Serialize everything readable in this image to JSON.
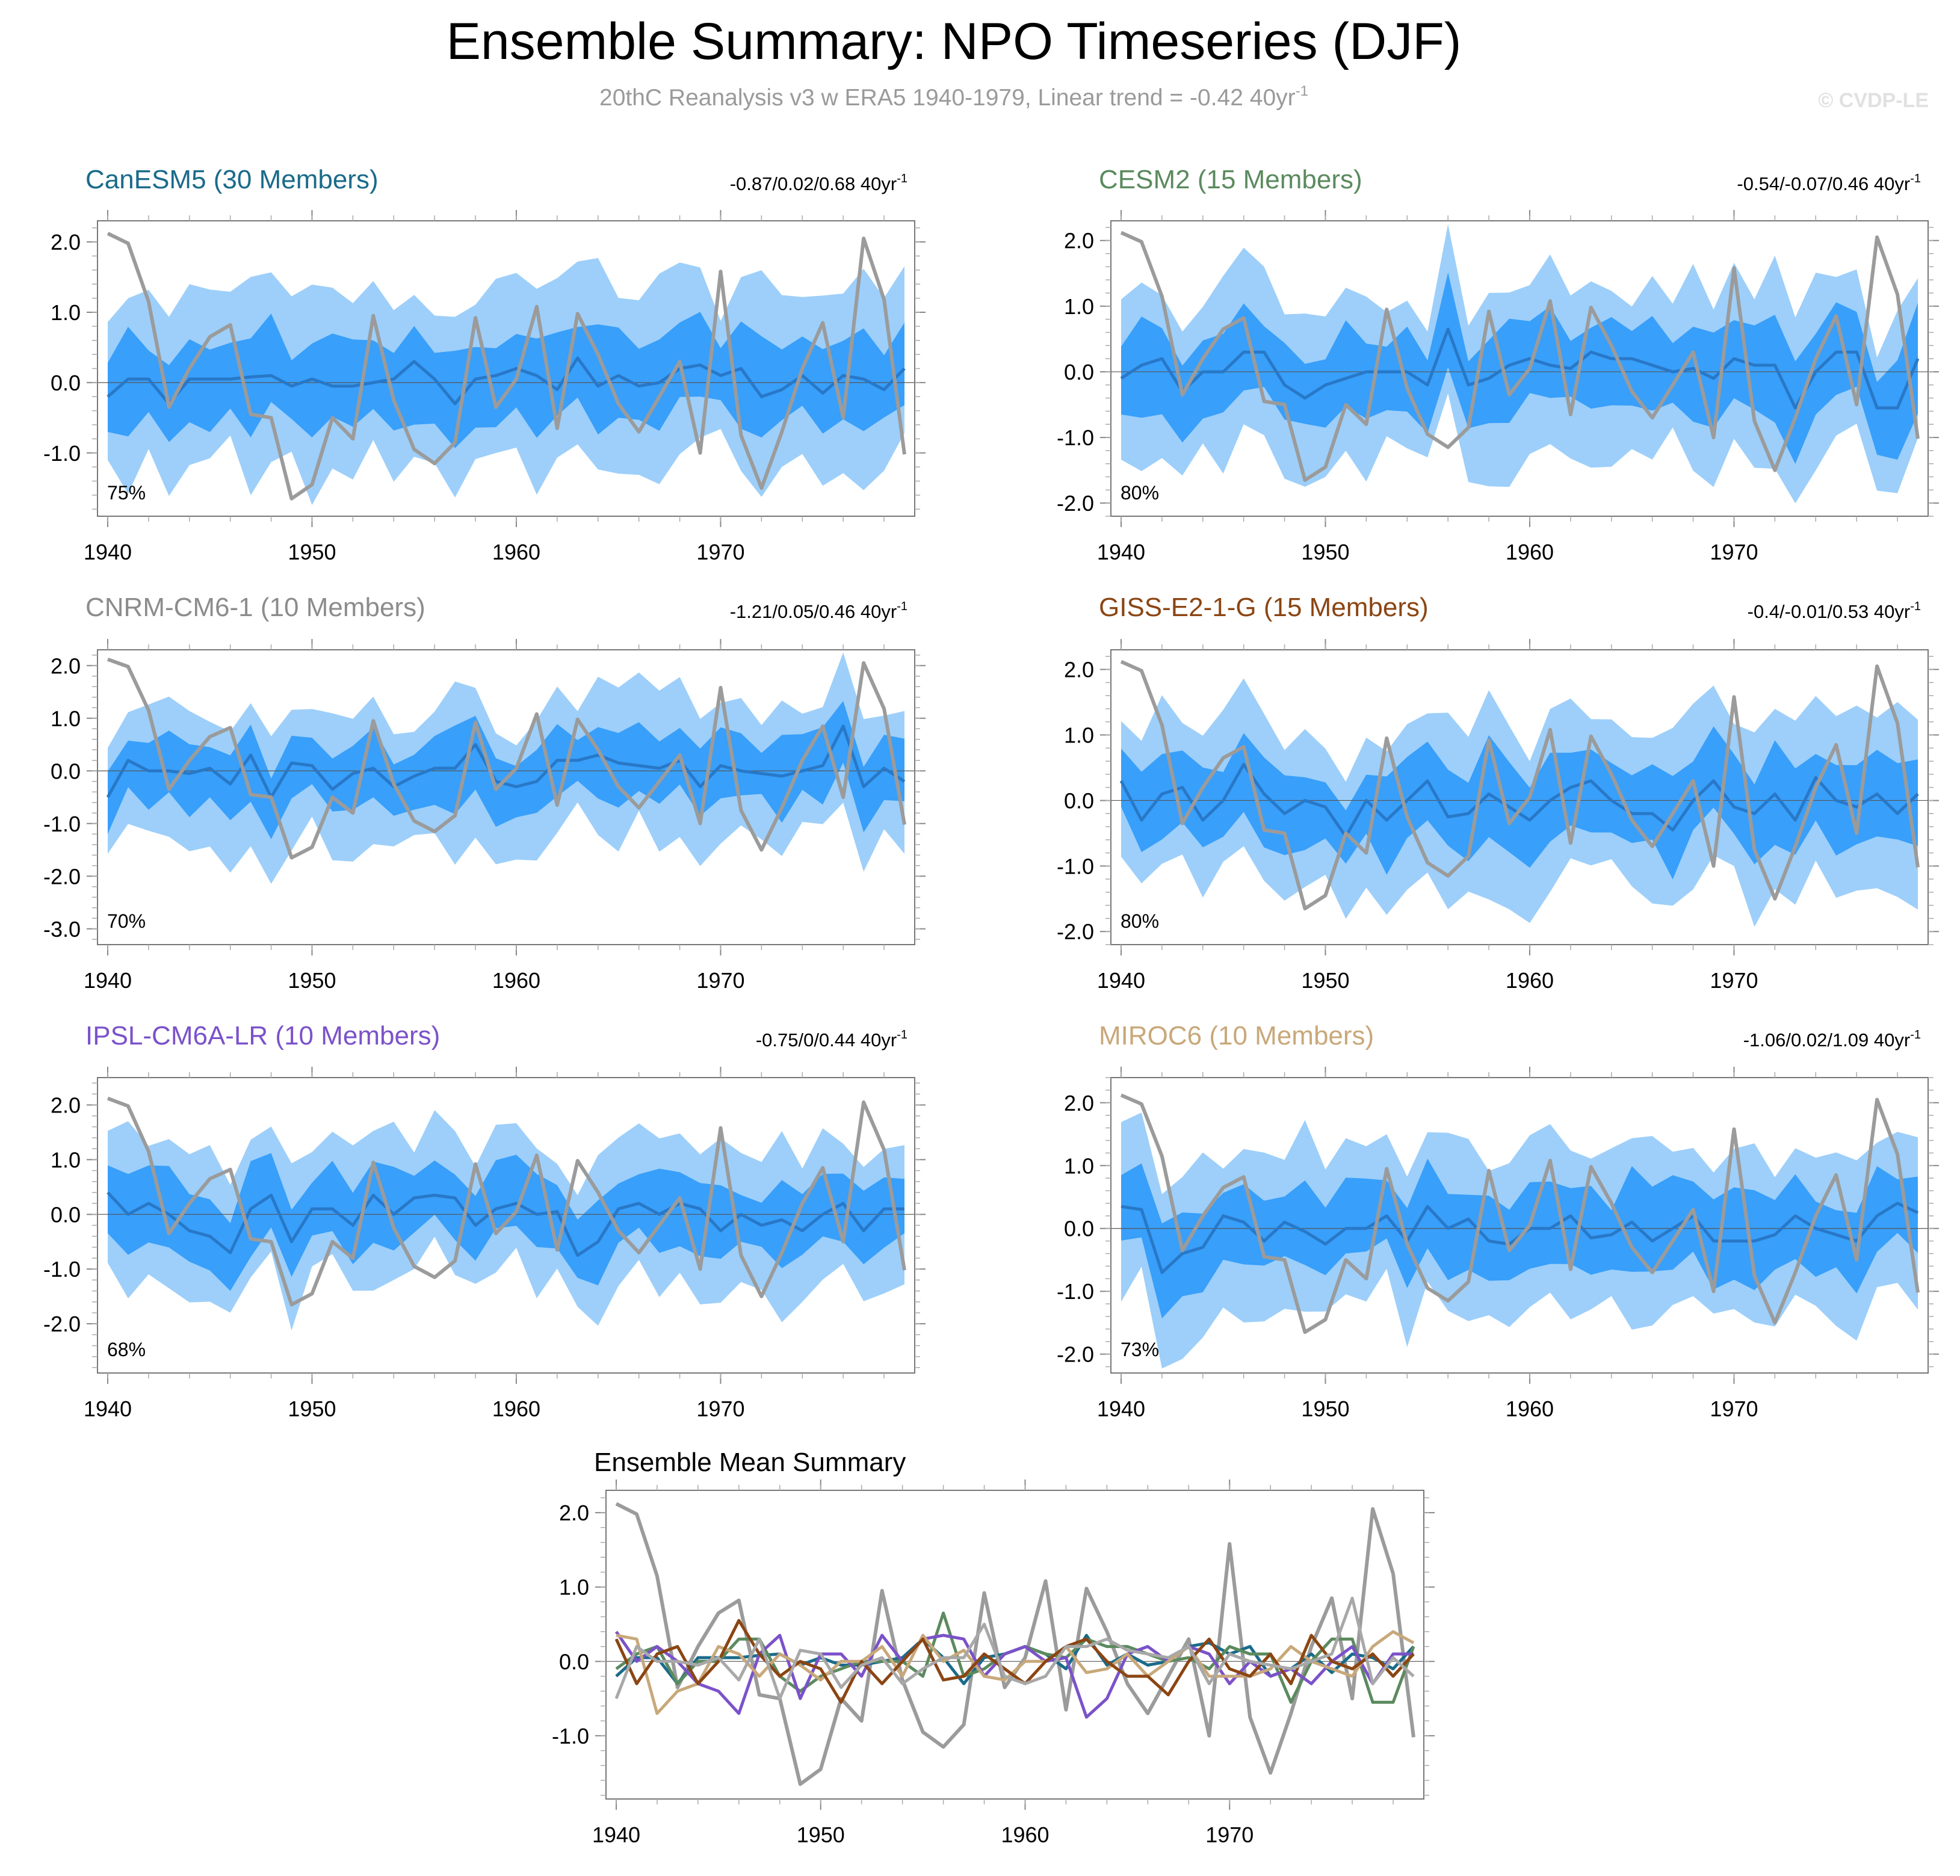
{
  "header": {
    "title": "Ensemble Summary: NPO Timeseries (DJF)",
    "subtitle": "20thC Reanalysis v3 w ERA5 1940-1979, Linear trend = -0.42 40yr",
    "subtitle_sup": "-1",
    "watermark": "© CVDP-LE"
  },
  "colors": {
    "outer_band": "#9dcffa",
    "inner_band": "#389ffa",
    "ens_mean_line": "#2878c8",
    "obs_line": "#9b9b9b"
  },
  "chart_data": [
    {
      "type": "area",
      "name": "CanESM5",
      "title": "CanESM5 (30 Members)",
      "title_color": "#1a6b8a",
      "trend_text": "-0.87/0.02/0.68 40yr",
      "trend_sup": "-1",
      "percent": "75%",
      "yticks": [
        2,
        1,
        0,
        -1
      ],
      "ytick_labels": [
        "2.0",
        "1.0",
        "0.0",
        "-1.0"
      ],
      "ylim": [
        -1.9,
        2.3
      ],
      "xlim": [
        1939.5,
        1979.5
      ],
      "xticks": [
        1940,
        1950,
        1960,
        1970
      ],
      "xtick_labels": [
        "1940",
        "1950",
        "1960",
        "1970"
      ],
      "seed": 11,
      "ens_mean": [
        -0.2,
        0.05,
        0.05,
        -0.3,
        0.05,
        0.05,
        0.05,
        0.08,
        0.1,
        -0.05,
        0.05,
        -0.05,
        -0.05,
        0.0,
        0.05,
        0.3,
        0.05,
        -0.3,
        0.05,
        0.1,
        0.2,
        0.1,
        -0.1,
        0.35,
        -0.05,
        0.1,
        -0.05,
        0.0,
        0.2,
        0.25,
        0.1,
        0.2,
        -0.2,
        -0.1,
        0.1,
        -0.15,
        0.1,
        0.05,
        -0.1,
        0.2
      ]
    },
    {
      "type": "area",
      "name": "CESM2",
      "title": "CESM2 (15 Members)",
      "title_color": "#5b8a5e",
      "trend_text": "-0.54/-0.07/0.46 40yr",
      "trend_sup": "-1",
      "percent": "80%",
      "yticks": [
        2,
        1,
        0,
        -1,
        -2
      ],
      "ytick_labels": [
        "2.0",
        "1.0",
        "0.0",
        "-1.0",
        "-2.0"
      ],
      "ylim": [
        -2.2,
        2.3
      ],
      "xlim": [
        1939.5,
        1979.5
      ],
      "xticks": [
        1940,
        1950,
        1960,
        1970
      ],
      "xtick_labels": [
        "1940",
        "1950",
        "1960",
        "1970"
      ],
      "seed": 23,
      "ens_mean": [
        -0.1,
        0.1,
        0.2,
        -0.3,
        0.0,
        0.0,
        0.3,
        0.3,
        -0.2,
        -0.4,
        -0.2,
        -0.1,
        0.0,
        0.0,
        0.0,
        -0.2,
        0.65,
        -0.2,
        -0.1,
        0.1,
        0.2,
        0.1,
        0.05,
        0.3,
        0.2,
        0.2,
        0.1,
        0.0,
        0.05,
        -0.1,
        0.2,
        0.1,
        0.1,
        -0.55,
        0.0,
        0.3,
        0.3,
        -0.55,
        -0.55,
        0.2
      ]
    },
    {
      "type": "area",
      "name": "CNRM-CM6-1",
      "title": "CNRM-CM6-1 (10 Members)",
      "title_color": "#8c8c8c",
      "trend_text": "-1.21/0.05/0.46 40yr",
      "trend_sup": "-1",
      "percent": "70%",
      "yticks": [
        2,
        1,
        0,
        -1,
        -2,
        -3
      ],
      "ytick_labels": [
        "2.0",
        "1.0",
        "0.0",
        "-1.0",
        "-2.0",
        "-3.0"
      ],
      "ylim": [
        -3.3,
        2.3
      ],
      "xlim": [
        1939.5,
        1979.5
      ],
      "xticks": [
        1940,
        1950,
        1960,
        1970
      ],
      "xtick_labels": [
        "1940",
        "1950",
        "1960",
        "1970"
      ],
      "seed": 37,
      "ens_mean": [
        -0.5,
        0.2,
        0.0,
        0.0,
        -0.05,
        0.05,
        -0.25,
        0.3,
        -0.5,
        0.15,
        0.1,
        -0.35,
        -0.05,
        0.05,
        -0.3,
        -0.1,
        0.05,
        0.05,
        0.5,
        -0.2,
        -0.3,
        -0.2,
        0.2,
        0.2,
        0.3,
        0.15,
        0.1,
        0.05,
        0.2,
        -0.3,
        0.1,
        0.0,
        -0.05,
        -0.1,
        0.0,
        0.1,
        0.85,
        -0.3,
        0.05,
        -0.2
      ]
    },
    {
      "type": "area",
      "name": "GISS-E2-1-G",
      "title": "GISS-E2-1-G (15 Members)",
      "title_color": "#8b4513",
      "trend_text": "-0.4/-0.01/0.53 40yr",
      "trend_sup": "-1",
      "percent": "80%",
      "yticks": [
        2,
        1,
        0,
        -1,
        -2
      ],
      "ytick_labels": [
        "2.0",
        "1.0",
        "0.0",
        "-1.0",
        "-2.0"
      ],
      "ylim": [
        -2.2,
        2.3
      ],
      "xlim": [
        1939.5,
        1979.5
      ],
      "xticks": [
        1940,
        1950,
        1960,
        1970
      ],
      "xtick_labels": [
        "1940",
        "1950",
        "1960",
        "1970"
      ],
      "seed": 53,
      "ens_mean": [
        0.3,
        -0.3,
        0.1,
        0.2,
        -0.3,
        0.0,
        0.55,
        0.1,
        -0.2,
        0.0,
        -0.1,
        -0.55,
        0.0,
        -0.3,
        0.0,
        0.3,
        -0.25,
        -0.2,
        0.1,
        -0.1,
        -0.3,
        0.0,
        0.2,
        0.3,
        0.0,
        -0.2,
        -0.2,
        -0.45,
        0.0,
        0.3,
        -0.1,
        -0.2,
        0.1,
        -0.3,
        0.35,
        0.0,
        -0.1,
        0.1,
        -0.2,
        0.1
      ]
    },
    {
      "type": "area",
      "name": "IPSL-CM6A-LR",
      "title": "IPSL-CM6A-LR (10 Members)",
      "title_color": "#7b52c9",
      "trend_text": "-0.75/0/0.44 40yr",
      "trend_sup": "-1",
      "percent": "68%",
      "yticks": [
        2,
        1,
        0,
        -1,
        -2
      ],
      "ytick_labels": [
        "2.0",
        "1.0",
        "0.0",
        "-1.0",
        "-2.0"
      ],
      "ylim": [
        -2.9,
        2.5
      ],
      "xlim": [
        1939.5,
        1979.5
      ],
      "xticks": [
        1940,
        1950,
        1960,
        1970
      ],
      "xtick_labels": [
        "1940",
        "1950",
        "1960",
        "1970"
      ],
      "seed": 71,
      "ens_mean": [
        0.4,
        0.0,
        0.2,
        0.0,
        -0.3,
        -0.4,
        -0.7,
        0.1,
        0.35,
        -0.5,
        0.1,
        0.1,
        -0.2,
        0.35,
        0.0,
        0.3,
        0.35,
        0.3,
        -0.2,
        0.1,
        0.2,
        0.0,
        0.05,
        -0.75,
        -0.5,
        0.1,
        0.2,
        0.0,
        0.2,
        0.1,
        -0.3,
        0.0,
        -0.2,
        -0.1,
        -0.3,
        0.0,
        0.2,
        -0.3,
        0.1,
        0.1
      ]
    },
    {
      "type": "area",
      "name": "MIROC6",
      "title": "MIROC6 (10 Members)",
      "title_color": "#c8a87a",
      "trend_text": "-1.06/0.02/1.09 40yr",
      "trend_sup": "-1",
      "percent": "73%",
      "yticks": [
        2,
        1,
        0,
        -1,
        -2
      ],
      "ytick_labels": [
        "2.0",
        "1.0",
        "0.0",
        "-1.0",
        "-2.0"
      ],
      "ylim": [
        -2.3,
        2.4
      ],
      "xlim": [
        1939.5,
        1979.5
      ],
      "xticks": [
        1940,
        1950,
        1960,
        1970
      ],
      "xtick_labels": [
        "1940",
        "1950",
        "1960",
        "1970"
      ],
      "seed": 89,
      "ens_mean": [
        0.35,
        0.3,
        -0.7,
        -0.4,
        -0.3,
        0.2,
        0.1,
        -0.2,
        0.1,
        -0.05,
        -0.25,
        0.0,
        0.0,
        0.2,
        -0.2,
        0.35,
        0.0,
        0.15,
        -0.2,
        -0.25,
        0.0,
        0.0,
        0.2,
        -0.15,
        -0.1,
        0.1,
        -0.2,
        0.0,
        0.2,
        -0.2,
        -0.2,
        -0.2,
        -0.1,
        0.2,
        0.0,
        -0.1,
        -0.2,
        0.2,
        0.4,
        0.25
      ]
    },
    {
      "type": "line",
      "name": "Ensemble Mean Summary",
      "title": "Ensemble Mean Summary",
      "title_color": "#000000",
      "yticks": [
        2,
        1,
        0,
        -1
      ],
      "ytick_labels": [
        "2.0",
        "1.0",
        "0.0",
        "-1.0"
      ],
      "ylim": [
        -1.85,
        2.3
      ],
      "xlim": [
        1939.5,
        1979.5
      ],
      "xticks": [
        1940,
        1950,
        1960,
        1970
      ],
      "xtick_labels": [
        "1940",
        "1950",
        "1960",
        "1970"
      ],
      "series_refs": [
        {
          "name": "CanESM5",
          "color": "#1a6b8a"
        },
        {
          "name": "CESM2",
          "color": "#5b8a5e"
        },
        {
          "name": "IPSL-CM6A-LR",
          "color": "#7b52c9"
        },
        {
          "name": "MIROC6",
          "color": "#c8a87a"
        },
        {
          "name": "GISS-E2-1-G",
          "color": "#8b4513"
        }
      ]
    }
  ],
  "observed": {
    "name": "20thC Reanalysis v3 w ERA5",
    "x": [
      1940,
      1941,
      1942,
      1943,
      1944,
      1945,
      1946,
      1947,
      1948,
      1949,
      1950,
      1951,
      1952,
      1953,
      1954,
      1955,
      1956,
      1957,
      1958,
      1959,
      1960,
      1961,
      1962,
      1963,
      1964,
      1965,
      1966,
      1967,
      1968,
      1969,
      1970,
      1971,
      1972,
      1973,
      1974,
      1975,
      1976,
      1977,
      1978,
      1979
    ],
    "values": [
      2.12,
      1.98,
      1.15,
      -0.35,
      0.2,
      0.65,
      0.82,
      -0.45,
      -0.5,
      -1.65,
      -1.45,
      -0.5,
      -0.8,
      0.95,
      -0.25,
      -0.95,
      -1.15,
      -0.85,
      0.92,
      -0.35,
      0.05,
      1.08,
      -0.65,
      0.98,
      0.4,
      -0.3,
      -0.7,
      -0.2,
      0.3,
      -1.0,
      1.58,
      -0.75,
      -1.5,
      -0.7,
      0.2,
      0.85,
      -0.5,
      2.05,
      1.18,
      -1.02
    ]
  }
}
